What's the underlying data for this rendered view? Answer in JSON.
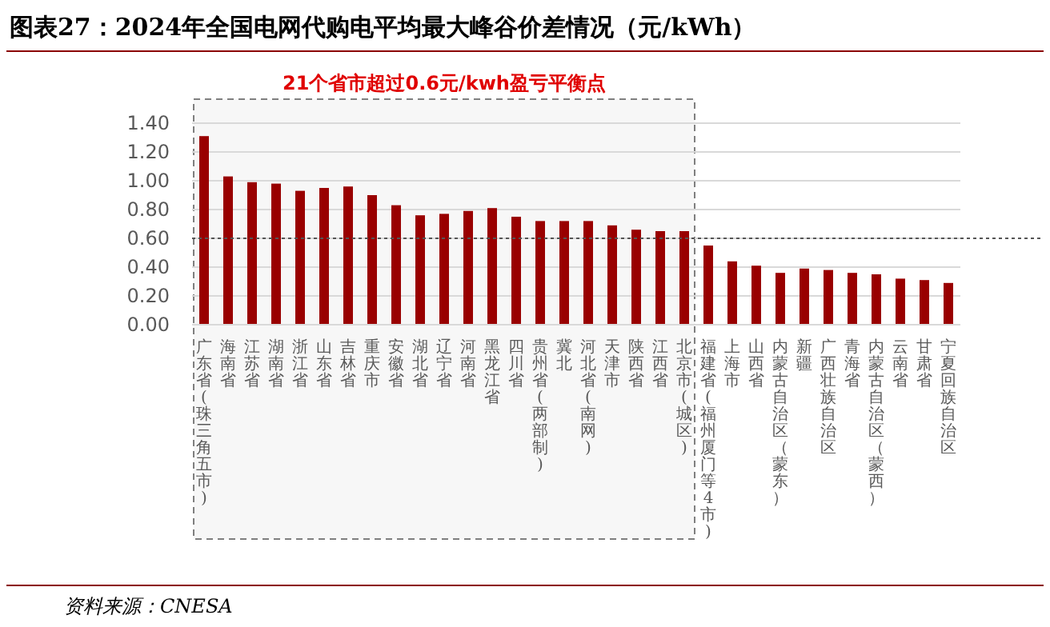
{
  "chart_data": {
    "type": "bar",
    "title": "图表27：2024年全国电网代购电平均最大峰谷价差情况（元/kWh）",
    "categories": [
      "广东省(珠三角五市)",
      "海南省",
      "江苏省",
      "湖南省",
      "浙江省",
      "山东省",
      "吉林省",
      "重庆市",
      "安徽省",
      "湖北省",
      "辽宁省",
      "河南省",
      "黑龙江省",
      "四川省",
      "贵州省(两部制)",
      "冀北",
      "河北省(南网)",
      "天津市",
      "陕西省",
      "江西省",
      "北京市(城区)",
      "福建省(福州厦门等4市)",
      "上海市",
      "山西省",
      "内蒙古自治区（蒙东）",
      "新疆",
      "广西壮族自治区",
      "青海省",
      "内蒙古自治区（蒙西）",
      "云南省",
      "甘肃省",
      "宁夏回族自治区"
    ],
    "values": [
      1.31,
      1.03,
      0.99,
      0.98,
      0.93,
      0.95,
      0.96,
      0.9,
      0.83,
      0.76,
      0.77,
      0.79,
      0.81,
      0.75,
      0.72,
      0.72,
      0.72,
      0.69,
      0.66,
      0.65,
      0.65,
      0.55,
      0.44,
      0.41,
      0.36,
      0.39,
      0.38,
      0.36,
      0.35,
      0.32,
      0.31,
      0.29
    ],
    "color": "#990000",
    "ylim": [
      0,
      1.4
    ],
    "yticks": [
      {
        "value": 0,
        "label": "0.00"
      },
      {
        "value": 0.2,
        "label": "0.20"
      },
      {
        "value": 0.4,
        "label": "0.40"
      },
      {
        "value": 0.6,
        "label": "0.60"
      },
      {
        "value": 0.8,
        "label": "0.80"
      },
      {
        "value": 1.0,
        "label": "1.00"
      },
      {
        "value": 1.2,
        "label": "1.20"
      },
      {
        "value": 1.4,
        "label": "1.40"
      }
    ],
    "grid": "y",
    "ref_lines": [
      {
        "axis": "y",
        "value": 0.6,
        "color": "#555555",
        "line_style": "dotted"
      }
    ],
    "bands": [
      {
        "axis": "x",
        "from": "广东省(珠三角五市)",
        "to": "北京市(城区)",
        "label": "21个省市超过0.6元/kwh盈亏平衡点",
        "color": "#7f7f7f"
      }
    ],
    "annotations": [
      "资料来源：CNESA"
    ]
  }
}
